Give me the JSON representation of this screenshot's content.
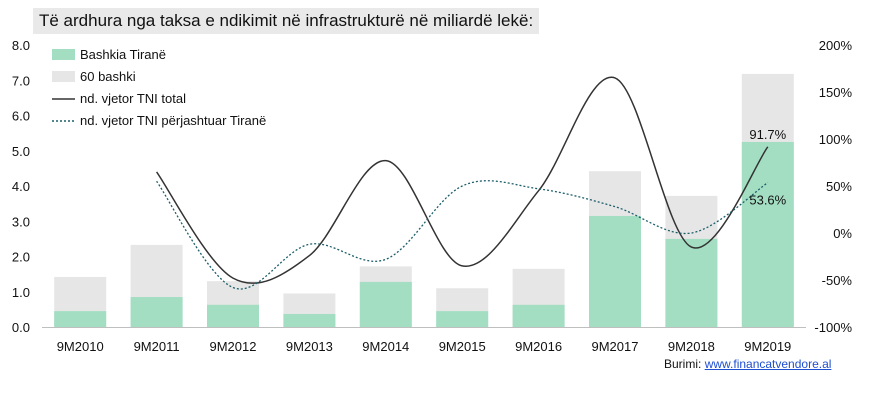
{
  "chart_data": {
    "type": "bar",
    "title": "Të ardhura nga taksa e ndikimit në infrastrukturë në miliardë lekë:",
    "categories": [
      "9M2010",
      "9M2011",
      "9M2012",
      "9M2013",
      "9M2014",
      "9M2015",
      "9M2016",
      "9M2017",
      "9M2018",
      "9M2019"
    ],
    "series": [
      {
        "name": "Bashkia Tiranë",
        "kind": "bar",
        "axis": "left",
        "color": "#a3dec3",
        "values": [
          0.45,
          0.85,
          0.63,
          0.37,
          1.28,
          0.45,
          0.63,
          3.15,
          2.5,
          5.25
        ]
      },
      {
        "name": "60 bashki",
        "kind": "bar",
        "axis": "left",
        "color": "#e6e6e6",
        "values": [
          1.42,
          2.33,
          1.3,
          0.95,
          1.72,
          1.1,
          1.65,
          4.42,
          3.72,
          7.18
        ]
      },
      {
        "name": "nd. vjetor TNI total",
        "kind": "line",
        "axis": "right",
        "color": "#333333",
        "dash": "solid",
        "values": [
          null,
          65,
          -48,
          -24,
          77,
          -35,
          45,
          165,
          -15,
          91.7
        ]
      },
      {
        "name": "nd. vjetor TNI përjashtuar Tiranë",
        "kind": "line",
        "axis": "right",
        "color": "#1c5f6a",
        "dash": "dotted",
        "values": [
          null,
          55,
          -58,
          -12,
          -28,
          50,
          47,
          28,
          0,
          53.6
        ]
      }
    ],
    "left_axis": {
      "min": 0,
      "max": 8,
      "step": 1,
      "ticks": [
        "0.0",
        "1.0",
        "2.0",
        "3.0",
        "4.0",
        "5.0",
        "6.0",
        "7.0",
        "8.0"
      ]
    },
    "right_axis": {
      "min": -100,
      "max": 200,
      "step": 50,
      "ticks": [
        "-100%",
        "-50%",
        "0%",
        "50%",
        "100%",
        "150%",
        "200%"
      ]
    },
    "annotations": [
      {
        "text": "91.7%",
        "series": 2,
        "category": 9
      },
      {
        "text": "53.6%",
        "series": 3,
        "category": 9
      }
    ],
    "legend_position": "top-left",
    "grid": false
  },
  "source": {
    "label": "Burimi:",
    "link_text": "www.financatvendore.al"
  }
}
